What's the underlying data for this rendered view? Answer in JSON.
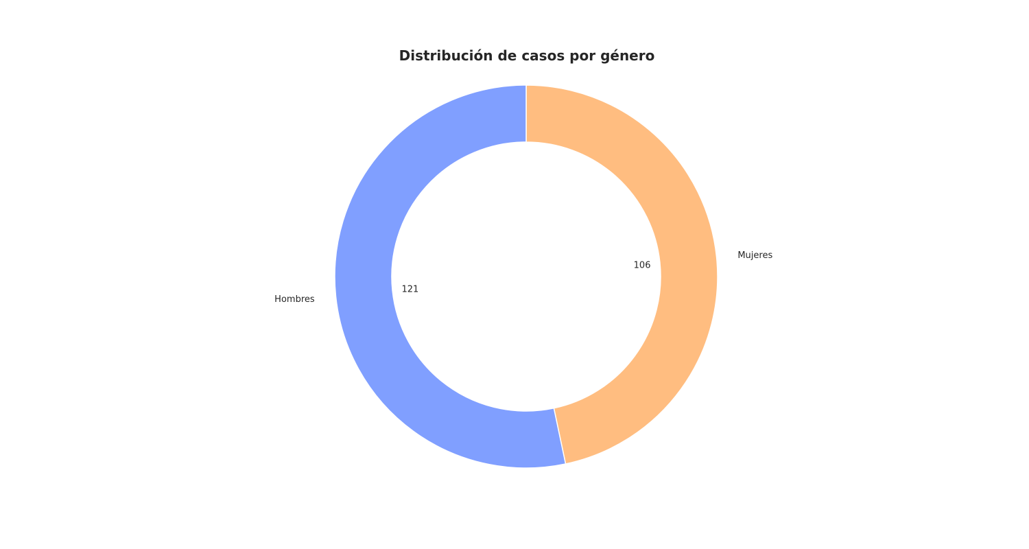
{
  "chart_data": {
    "type": "pie",
    "title": "Distribución de casos por género",
    "slices": [
      {
        "label": "Mujeres",
        "value": 106,
        "display": "106",
        "color": "#ffbd80"
      },
      {
        "label": "Hombres",
        "value": 121,
        "display": "121",
        "color": "#809fff"
      }
    ],
    "donut": true,
    "start_angle_deg": 90,
    "direction": "clockwise",
    "slice_edge_color": "#ffffff"
  }
}
